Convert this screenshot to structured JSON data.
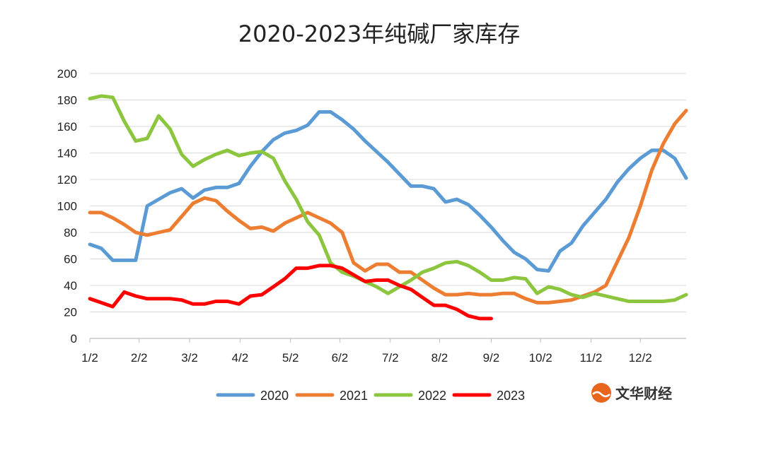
{
  "chart_data": {
    "type": "line",
    "title": "2020-2023年纯碱厂家库存",
    "xlabel": "",
    "ylabel": "",
    "ylim": [
      0,
      200
    ],
    "yticks": [
      0,
      20,
      40,
      60,
      80,
      100,
      120,
      140,
      160,
      180,
      200
    ],
    "xlim": [
      0,
      52
    ],
    "grid": true,
    "legend_position": "bottom",
    "x_tick_labels": [
      {
        "x": 0,
        "label": "1/2"
      },
      {
        "x": 4.3,
        "label": "2/2"
      },
      {
        "x": 8.7,
        "label": "3/2"
      },
      {
        "x": 13.1,
        "label": "4/2"
      },
      {
        "x": 17.5,
        "label": "5/2"
      },
      {
        "x": 21.8,
        "label": "6/2"
      },
      {
        "x": 26.2,
        "label": "7/2"
      },
      {
        "x": 30.5,
        "label": "8/2"
      },
      {
        "x": 35.0,
        "label": "9/2"
      },
      {
        "x": 39.3,
        "label": "10/2"
      },
      {
        "x": 43.7,
        "label": "11/2"
      },
      {
        "x": 48.0,
        "label": "12/2"
      }
    ],
    "series": [
      {
        "name": "2020",
        "color": "#5B9BD5",
        "width": 5,
        "x": [
          0,
          1,
          2,
          3,
          4,
          5,
          6,
          7,
          8,
          9,
          10,
          11,
          12,
          13,
          14,
          15,
          16,
          17,
          18,
          19,
          20,
          21,
          22,
          23,
          24,
          25,
          26,
          27,
          28,
          29,
          30,
          31,
          32,
          33,
          34,
          35,
          36,
          37,
          38,
          39,
          40,
          41,
          42,
          43,
          44,
          45,
          46,
          47,
          48,
          49,
          50,
          51,
          52
        ],
        "values": [
          71,
          68,
          59,
          59,
          59,
          100,
          105,
          110,
          113,
          106,
          112,
          114,
          114,
          117,
          130,
          141,
          150,
          155,
          157,
          161,
          171,
          171,
          165,
          158,
          149,
          141,
          133,
          124,
          115,
          115,
          113,
          103,
          105,
          101,
          93,
          84,
          74,
          65,
          60,
          52,
          51,
          66,
          72,
          85,
          95,
          105,
          118,
          128,
          136,
          142,
          142,
          136,
          121
        ]
      },
      {
        "name": "2021",
        "color": "#ED7D31",
        "width": 5,
        "x": [
          0,
          1,
          2,
          3,
          4,
          5,
          6,
          7,
          8,
          9,
          10,
          11,
          12,
          13,
          14,
          15,
          16,
          17,
          18,
          19,
          20,
          21,
          22,
          23,
          24,
          25,
          26,
          27,
          28,
          29,
          30,
          31,
          32,
          33,
          34,
          35,
          36,
          37,
          38,
          39,
          40,
          41,
          42,
          43,
          44,
          45,
          46,
          47,
          48,
          49,
          50,
          51,
          52
        ],
        "values": [
          95,
          95,
          91,
          86,
          80,
          78,
          80,
          82,
          92,
          102,
          106,
          104,
          96,
          89,
          83,
          84,
          81,
          87,
          91,
          95,
          91,
          87,
          80,
          57,
          51,
          56,
          56,
          50,
          50,
          44,
          38,
          33,
          33,
          34,
          33,
          33,
          34,
          34,
          30,
          27,
          27,
          28,
          29,
          32,
          35,
          40,
          58,
          76,
          100,
          127,
          147,
          162,
          172
        ]
      },
      {
        "name": "2022",
        "color": "#8CC63F",
        "width": 5,
        "x": [
          0,
          1,
          2,
          3,
          4,
          5,
          6,
          7,
          8,
          9,
          10,
          11,
          12,
          13,
          14,
          15,
          16,
          17,
          18,
          19,
          20,
          21,
          22,
          23,
          24,
          25,
          26,
          27,
          28,
          29,
          30,
          31,
          32,
          33,
          34,
          35,
          36,
          37,
          38,
          39,
          40,
          41,
          42,
          43,
          44,
          45,
          46,
          47,
          48,
          49,
          50,
          51,
          52
        ],
        "values": [
          181,
          183,
          182,
          164,
          149,
          151,
          168,
          158,
          139,
          130,
          135,
          139,
          142,
          138,
          140,
          141,
          136,
          119,
          105,
          88,
          78,
          57,
          50,
          47,
          43,
          39,
          34,
          39,
          44,
          50,
          53,
          57,
          58,
          55,
          50,
          44,
          44,
          46,
          45,
          34,
          39,
          37,
          33,
          31,
          34,
          32,
          30,
          28,
          28,
          28,
          28,
          29,
          33
        ]
      },
      {
        "name": "2023",
        "color": "#FF0000",
        "width": 5,
        "x": [
          0,
          1,
          2,
          3,
          4,
          5,
          6,
          7,
          8,
          9,
          10,
          11,
          12,
          13,
          14,
          15,
          16,
          17,
          18,
          19,
          20,
          21,
          22,
          23,
          24,
          25,
          26,
          27,
          28,
          29,
          30,
          31,
          32,
          33,
          34,
          35
        ],
        "values": [
          30,
          27,
          24,
          35,
          32,
          30,
          30,
          30,
          29,
          26,
          26,
          28,
          28,
          26,
          32,
          33,
          39,
          45,
          53,
          53,
          55,
          55,
          53,
          48,
          43,
          44,
          44,
          40,
          37,
          31,
          25,
          25,
          22,
          17,
          15,
          15
        ]
      }
    ]
  },
  "watermark": {
    "text": "文华财经",
    "icon": "wenhua-logo-icon",
    "color": "#E8651E"
  }
}
